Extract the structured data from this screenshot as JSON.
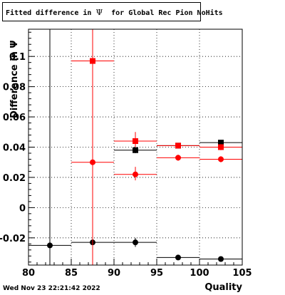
{
  "title": {
    "text": "Fitted difference in ",
    "psi": "Ψ",
    "suffix": "  for Global Rec Pion NoHits"
  },
  "timestamp": "Wed Nov 23 22:21:42 2022",
  "colors": {
    "series_black": "#000000",
    "series_red": "#ff0000",
    "grid": "#000000"
  },
  "chart_data": {
    "type": "scatter",
    "xlabel": "Quality",
    "ylabel": "Difference in Ψ",
    "xlim": [
      80,
      105
    ],
    "ylim": [
      -0.038,
      0.118
    ],
    "grid": true,
    "x_ticks": [
      "80",
      "85",
      "90",
      "95",
      "100",
      "105"
    ],
    "y_ticks": [
      "-0.02",
      "0",
      "0.02",
      "0.04",
      "0.06",
      "0.08",
      "0.1"
    ],
    "y_tick_values": [
      -0.02,
      0,
      0.02,
      0.04,
      0.06,
      0.08,
      0.1
    ],
    "x_tick_values": [
      80,
      85,
      90,
      95,
      100,
      105
    ],
    "series": [
      {
        "color": "#000000",
        "marker": "square",
        "points": [
          {
            "x": 92.5,
            "y": 0.038,
            "xlo": 90,
            "xhi": 95,
            "ylo": 0.036,
            "yhi": 0.04
          },
          {
            "x": 97.5,
            "y": 0.041,
            "xlo": 95,
            "xhi": 100,
            "ylo": 0.04,
            "yhi": 0.042
          },
          {
            "x": 102.5,
            "y": 0.043,
            "xlo": 100,
            "xhi": 105,
            "ylo": 0.042,
            "yhi": 0.044
          }
        ]
      },
      {
        "color": "#000000",
        "marker": "circle",
        "points": [
          {
            "x": 82.5,
            "y": -0.025,
            "xlo": 80,
            "xhi": 85,
            "ylo": -0.038,
            "yhi": 0.118
          },
          {
            "x": 87.5,
            "y": -0.023,
            "xlo": 85,
            "xhi": 90,
            "ylo": -0.024,
            "yhi": -0.022
          },
          {
            "x": 92.5,
            "y": -0.023,
            "xlo": 90,
            "xhi": 95,
            "ylo": -0.026,
            "yhi": -0.02
          },
          {
            "x": 97.5,
            "y": -0.033,
            "xlo": 95,
            "xhi": 100,
            "ylo": -0.034,
            "yhi": -0.032
          },
          {
            "x": 102.5,
            "y": -0.034,
            "xlo": 100,
            "xhi": 105,
            "ylo": -0.035,
            "yhi": -0.033
          }
        ]
      },
      {
        "color": "#ff0000",
        "marker": "square",
        "points": [
          {
            "x": 87.5,
            "y": 0.097,
            "xlo": 85,
            "xhi": 90,
            "ylo": -0.038,
            "yhi": 0.118
          },
          {
            "x": 92.5,
            "y": 0.044,
            "xlo": 90,
            "xhi": 95,
            "ylo": 0.04,
            "yhi": 0.05
          },
          {
            "x": 97.5,
            "y": 0.041,
            "xlo": 95,
            "xhi": 100,
            "ylo": 0.04,
            "yhi": 0.042
          },
          {
            "x": 102.5,
            "y": 0.04,
            "xlo": 100,
            "xhi": 105,
            "ylo": 0.038,
            "yhi": 0.042
          }
        ]
      },
      {
        "color": "#ff0000",
        "marker": "circle",
        "points": [
          {
            "x": 87.5,
            "y": 0.03,
            "xlo": 85,
            "xhi": 90,
            "ylo": -0.038,
            "yhi": 0.118
          },
          {
            "x": 92.5,
            "y": 0.022,
            "xlo": 90,
            "xhi": 95,
            "ylo": 0.018,
            "yhi": 0.027
          },
          {
            "x": 97.5,
            "y": 0.033,
            "xlo": 95,
            "xhi": 100,
            "ylo": 0.031,
            "yhi": 0.035
          },
          {
            "x": 102.5,
            "y": 0.032,
            "xlo": 100,
            "xhi": 105,
            "ylo": 0.03,
            "yhi": 0.034
          }
        ]
      }
    ]
  }
}
